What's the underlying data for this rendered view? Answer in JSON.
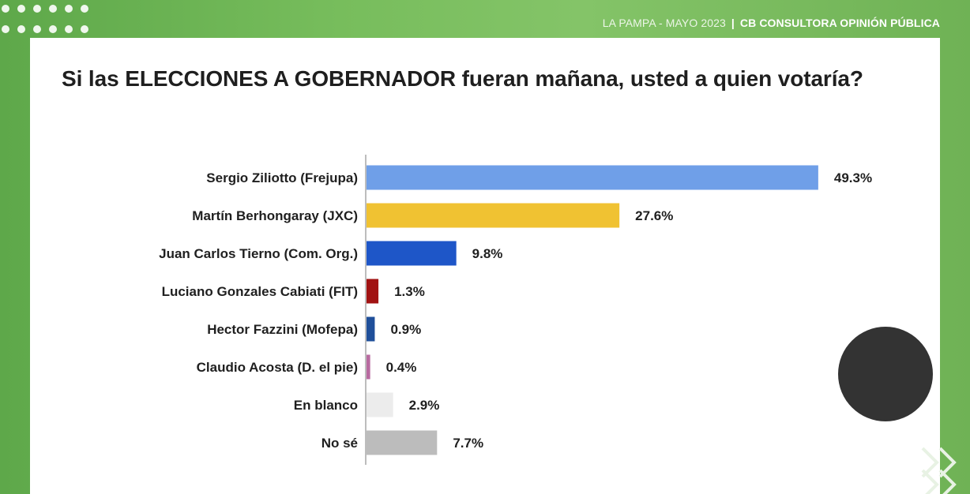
{
  "header": {
    "location": "LA PAMPA",
    "date": "- MAYO 2023",
    "separator": "|",
    "source": "CB CONSULTORA OPINIÓN PÚBLICA"
  },
  "colors": {
    "background_green": "#77bd5c",
    "card": "#ffffff",
    "text": "#1f1f1f"
  },
  "chart_data": {
    "type": "bar",
    "orientation": "horizontal",
    "title": "Si las ELECCIONES A GOBERNADOR fueran mañana, usted a quien votaría?",
    "xlabel": "",
    "ylabel": "",
    "xlim": [
      0,
      50
    ],
    "grid": false,
    "legend": "none",
    "categories": [
      "Sergio Ziliotto (Frejupa)",
      "Martín Berhongaray (JXC)",
      "Juan Carlos Tierno (Com. Org.)",
      "Luciano Gonzales Cabiati (FIT)",
      "Hector Fazzini (Mofepa)",
      "Claudio Acosta (D. el pie)",
      "En blanco",
      "No sé"
    ],
    "values": [
      49.3,
      27.6,
      9.8,
      1.3,
      0.9,
      0.4,
      2.9,
      7.7
    ],
    "value_labels": [
      "49.3%",
      "27.6%",
      "9.8%",
      "1.3%",
      "0.9%",
      "0.4%",
      "2.9%",
      "7.7%"
    ],
    "bar_colors": [
      "#6f9fe8",
      "#f0c232",
      "#1e56c8",
      "#a11212",
      "#1f4f9a",
      "#b86aa0",
      "#ececec",
      "#bcbcbc"
    ]
  }
}
